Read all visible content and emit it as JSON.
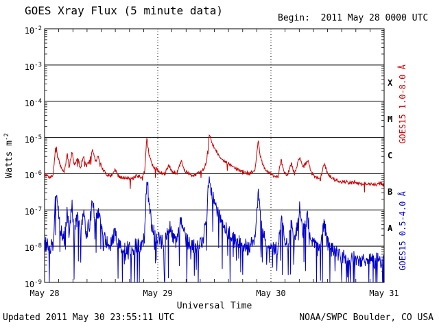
{
  "header": {
    "title": "GOES Xray Flux (5 minute data)",
    "begin_label": "Begin:  2011 May 28 0000 UTC"
  },
  "footer": {
    "updated": "Updated 2011 May 30 23:55:11 UTC",
    "credit": "NOAA/SWPC Boulder, CO USA"
  },
  "chart_data": {
    "type": "line",
    "title": "GOES Xray Flux (5 minute data)",
    "xlabel": "Universal Time",
    "ylabel_base": "Watts m",
    "ylabel_sup": "-2",
    "x_range_hours": [
      0,
      72
    ],
    "x_tick_hours": [
      0,
      24,
      48,
      72
    ],
    "x_tick_labels": [
      "May 28",
      "May 29",
      "May 30",
      "May 31"
    ],
    "x_day_gridlines_hours": [
      24,
      48
    ],
    "y_log_range": [
      -9,
      -2
    ],
    "y_tick_exponents": [
      -2,
      -3,
      -4,
      -5,
      -6,
      -7,
      -8,
      -9
    ],
    "y_gridline_exponents": [
      -3,
      -4,
      -5,
      -6,
      -7,
      -8
    ],
    "flare_classes": [
      {
        "label": "X",
        "exp": -3.5
      },
      {
        "label": "M",
        "exp": -4.5
      },
      {
        "label": "C",
        "exp": -5.5
      },
      {
        "label": "B",
        "exp": -6.5
      },
      {
        "label": "A",
        "exp": -7.5
      }
    ],
    "grid": true,
    "legend_position": "right-rotated",
    "colors": {
      "long_band": "#cc0000",
      "short_band": "#0000cc",
      "axis": "#000000"
    },
    "series": [
      {
        "name": "GOES15 1.0-8.0 Å",
        "band": "long",
        "color": "#cc0000",
        "points_hour_flux": [
          [
            0,
            1e-06
          ],
          [
            1,
            8e-07
          ],
          [
            1.8,
            9e-07
          ],
          [
            2.4,
            7e-06
          ],
          [
            2.7,
            3e-06
          ],
          [
            3.5,
            1.5e-06
          ],
          [
            4.2,
            1.1e-06
          ],
          [
            4.8,
            3.5e-06
          ],
          [
            5.2,
            1.5e-06
          ],
          [
            5.8,
            4e-06
          ],
          [
            6.3,
            1.8e-06
          ],
          [
            7.0,
            2.8e-06
          ],
          [
            7.6,
            1.4e-06
          ],
          [
            8.2,
            3.2e-06
          ],
          [
            8.8,
            1.6e-06
          ],
          [
            9.5,
            2.2e-06
          ],
          [
            10.2,
            4.5e-06
          ],
          [
            10.8,
            2.2e-06
          ],
          [
            11.4,
            3e-06
          ],
          [
            12.2,
            1.4e-06
          ],
          [
            13,
            1e-06
          ],
          [
            14,
            8.5e-07
          ],
          [
            15,
            1.3e-06
          ],
          [
            15.6,
            8.5e-07
          ],
          [
            16.5,
            7.5e-07
          ],
          [
            17.5,
            8e-07
          ],
          [
            18.5,
            7e-07
          ],
          [
            19.5,
            9e-07
          ],
          [
            20.5,
            8e-07
          ],
          [
            21.2,
            1.1e-06
          ],
          [
            21.7,
            1.05e-05
          ],
          [
            22.1,
            3.5e-06
          ],
          [
            22.8,
            1.8e-06
          ],
          [
            23.5,
            1.4e-06
          ],
          [
            24.5,
            1.1e-06
          ],
          [
            25.5,
            9.5e-07
          ],
          [
            26.3,
            1.8e-06
          ],
          [
            27,
            1.2e-06
          ],
          [
            28,
            1e-06
          ],
          [
            29,
            2.2e-06
          ],
          [
            29.6,
            1.3e-06
          ],
          [
            30.5,
            1e-06
          ],
          [
            31.5,
            9e-07
          ],
          [
            32.5,
            1e-06
          ],
          [
            33.5,
            1.2e-06
          ],
          [
            34.3,
            2e-06
          ],
          [
            34.9,
            1.3e-05
          ],
          [
            35.5,
            7e-06
          ],
          [
            36.5,
            4e-06
          ],
          [
            37.5,
            2.6e-06
          ],
          [
            38.5,
            2.1e-06
          ],
          [
            39.5,
            1.7e-06
          ],
          [
            40.5,
            1.4e-06
          ],
          [
            41.5,
            1.2e-06
          ],
          [
            42.5,
            1.1e-06
          ],
          [
            43.5,
            1e-06
          ],
          [
            44.6,
            1.3e-06
          ],
          [
            45.3,
            8e-06
          ],
          [
            45.8,
            2.8e-06
          ],
          [
            46.5,
            1.5e-06
          ],
          [
            47.5,
            1.1e-06
          ],
          [
            48.5,
            8.5e-07
          ],
          [
            49.5,
            8e-07
          ],
          [
            50.2,
            2.6e-06
          ],
          [
            50.7,
            1.2e-06
          ],
          [
            51.5,
            9e-07
          ],
          [
            52.3,
            1.9e-06
          ],
          [
            53,
            1e-06
          ],
          [
            54.1,
            3e-06
          ],
          [
            54.7,
            1.4e-06
          ],
          [
            55.8,
            2.4e-06
          ],
          [
            56.5,
            1.1e-06
          ],
          [
            57.5,
            8e-07
          ],
          [
            58.5,
            7e-07
          ],
          [
            59.3,
            2e-06
          ],
          [
            60,
            1e-06
          ],
          [
            61,
            7.5e-07
          ],
          [
            62,
            6.5e-07
          ],
          [
            63,
            6e-07
          ],
          [
            64,
            6e-07
          ],
          [
            65,
            5.5e-07
          ],
          [
            66,
            6e-07
          ],
          [
            67,
            5e-07
          ],
          [
            68,
            5.5e-07
          ],
          [
            69,
            5e-07
          ],
          [
            70,
            5e-07
          ],
          [
            71,
            5.5e-07
          ],
          [
            72,
            5e-07
          ]
        ]
      },
      {
        "name": "GOES15 0.5-4.0 Å",
        "band": "short",
        "color": "#0000cc",
        "points_hour_flux": [
          [
            0,
            1.2e-08
          ],
          [
            1,
            9e-09
          ],
          [
            1.8,
            1.2e-08
          ],
          [
            2.4,
            3.5e-07
          ],
          [
            2.7,
            1.2e-07
          ],
          [
            3.5,
            3e-08
          ],
          [
            4.2,
            1.5e-08
          ],
          [
            4.8,
            9e-08
          ],
          [
            5.2,
            2.5e-08
          ],
          [
            5.8,
            1.3e-07
          ],
          [
            6.3,
            3e-08
          ],
          [
            7.0,
            6e-08
          ],
          [
            7.6,
            2e-08
          ],
          [
            8.2,
            8e-08
          ],
          [
            8.8,
            2.5e-08
          ],
          [
            9.5,
            4e-08
          ],
          [
            10.2,
            1.8e-07
          ],
          [
            10.8,
            5e-08
          ],
          [
            11.4,
            1e-07
          ],
          [
            12.2,
            2.2e-08
          ],
          [
            13,
            1.3e-08
          ],
          [
            14,
            1e-08
          ],
          [
            15,
            2.5e-08
          ],
          [
            15.6,
            1.1e-08
          ],
          [
            16.5,
            8e-09
          ],
          [
            17.5,
            9e-09
          ],
          [
            18.5,
            7e-09
          ],
          [
            19.5,
            1.1e-08
          ],
          [
            20.5,
            9e-09
          ],
          [
            21.2,
            2e-08
          ],
          [
            21.7,
            9e-07
          ],
          [
            22.1,
            1.8e-07
          ],
          [
            22.8,
            4e-08
          ],
          [
            23.5,
            2.2e-08
          ],
          [
            24.5,
            1.4e-08
          ],
          [
            25.5,
            1.1e-08
          ],
          [
            26.3,
            4.5e-08
          ],
          [
            27,
            1.8e-08
          ],
          [
            28,
            1.2e-08
          ],
          [
            29,
            5.5e-08
          ],
          [
            29.6,
            2e-08
          ],
          [
            30.5,
            1.2e-08
          ],
          [
            31.5,
            1e-08
          ],
          [
            32.5,
            1.1e-08
          ],
          [
            33.5,
            1.4e-08
          ],
          [
            34.3,
            5e-08
          ],
          [
            34.9,
            1e-06
          ],
          [
            35.5,
            2.8e-07
          ],
          [
            36.5,
            9e-08
          ],
          [
            37.5,
            4.5e-08
          ],
          [
            38.5,
            2.8e-08
          ],
          [
            39.5,
            2e-08
          ],
          [
            40.5,
            1.5e-08
          ],
          [
            41.5,
            1.2e-08
          ],
          [
            42.5,
            1e-08
          ],
          [
            43.5,
            9e-09
          ],
          [
            44.6,
            1.6e-08
          ],
          [
            45.3,
            2.8e-07
          ],
          [
            45.8,
            6e-08
          ],
          [
            46.5,
            2.2e-08
          ],
          [
            47.5,
            1.2e-08
          ],
          [
            48.5,
            9e-09
          ],
          [
            49.5,
            8e-09
          ],
          [
            50.2,
            8e-08
          ],
          [
            50.7,
            2.2e-08
          ],
          [
            51.5,
            1e-08
          ],
          [
            52.3,
            4e-08
          ],
          [
            53,
            1.2e-08
          ],
          [
            54.1,
            1.1e-07
          ],
          [
            54.7,
            2.5e-08
          ],
          [
            55.8,
            6e-08
          ],
          [
            56.5,
            1.4e-08
          ],
          [
            57.5,
            9e-09
          ],
          [
            58.5,
            7e-09
          ],
          [
            59.3,
            4.5e-08
          ],
          [
            60,
            1.2e-08
          ],
          [
            61,
            8e-09
          ],
          [
            62,
            6e-09
          ],
          [
            63,
            5e-09
          ],
          [
            64,
            5e-09
          ],
          [
            65,
            4.5e-09
          ],
          [
            66,
            5e-09
          ],
          [
            67,
            4e-09
          ],
          [
            68,
            4.5e-09
          ],
          [
            69,
            4e-09
          ],
          [
            70,
            4e-09
          ],
          [
            71,
            4e-09
          ],
          [
            72,
            3.5e-09
          ]
        ]
      }
    ],
    "render_hints": {
      "noise_dex": [
        0.05,
        0.22
      ],
      "down_spike_prob": [
        0.02,
        0.12
      ],
      "down_spike_dex": [
        0.3,
        1.4
      ],
      "seed": [
        7,
        13
      ]
    }
  }
}
